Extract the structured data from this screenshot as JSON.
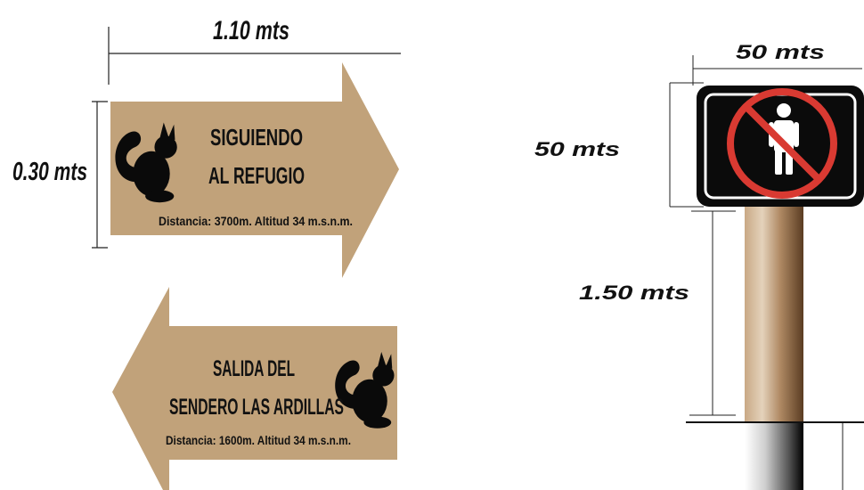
{
  "sign_right": {
    "width_label": "1.10 mts",
    "height_label": "0.30 mts",
    "line1": "SIGUIENDO",
    "line2": "AL REFUGIO",
    "detail": "Distancia: 3700m. Altitud 34 m.s.n.m.",
    "color": "#c1a27a"
  },
  "sign_left": {
    "line1": "SALIDA DEL",
    "line2": "SENDERO LAS ARDILLAS",
    "detail": "Distancia: 1600m. Altitud 34 m.s.n.m.",
    "color": "#c1a27a"
  },
  "post_sign": {
    "top_label": "50 mts",
    "side_label": "50 mts",
    "post_label": "1.50 mts",
    "icon": "no-pedestrians-icon",
    "prohibition_color": "#d93a32"
  }
}
